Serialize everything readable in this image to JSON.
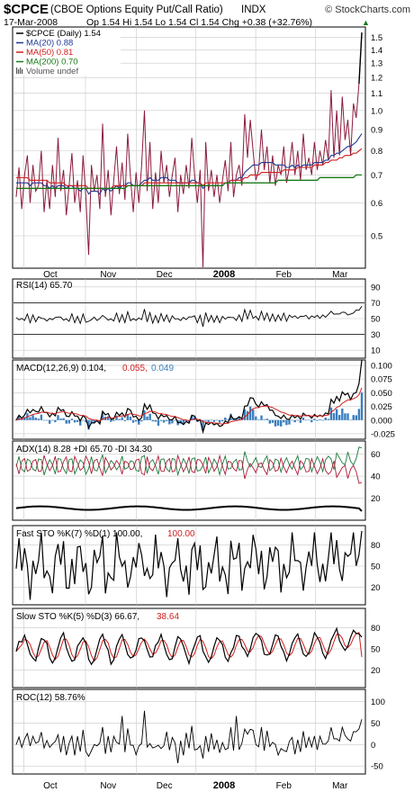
{
  "header": {
    "symbol": "$CPCE",
    "name": "(CBOE Options Equity Put/Call Ratio)",
    "exchange": "INDX",
    "watermark": "© StockCharts.com",
    "date": "17-Mar-2008",
    "quote": "Op 1.54  Hi 1.54  Lo 1.54  Cl 1.54  Chg +0.38 (+32.76%)",
    "quote_marker": "▲"
  },
  "colors": {
    "price": "#8b1a3b",
    "ma20": "#1f3a93",
    "ma50": "#d11f1f",
    "ma200": "#1a7a1a",
    "macd_line": "#000000",
    "signal": "#d11f1f",
    "histogram": "#3a7fbf",
    "plus_di": "#1a7a3a",
    "minus_di": "#b01a3a",
    "adx": "#000000",
    "grid": "#c8c8c8"
  },
  "x_axis": {
    "months": [
      "Oct",
      "Nov",
      "Dec",
      "2008",
      "Feb",
      "Mar"
    ]
  },
  "panels": {
    "price": {
      "legend": [
        {
          "label": "$CPCE (Daily) 1.54",
          "icon": "line",
          "color": "#000000"
        },
        {
          "label": "MA(20) 0.88",
          "icon": "line",
          "color": "#1f3a93"
        },
        {
          "label": "MA(50) 0.81",
          "icon": "line",
          "color": "#d11f1f"
        },
        {
          "label": "MA(200) 0.70",
          "icon": "line",
          "color": "#1a7a1a"
        },
        {
          "label": "Volume undef",
          "icon": "bars",
          "color": "#555555"
        }
      ],
      "ticks": [
        "1.5",
        "1.4",
        "1.3",
        "1.2",
        "1.1",
        "1.0",
        "0.9",
        "0.8",
        "0.7",
        "0.6",
        "0.5"
      ]
    },
    "rsi": {
      "label": "RSI(14) 65.70",
      "ticks": [
        "90",
        "70",
        "50",
        "30",
        "10"
      ]
    },
    "macd": {
      "label_main": "MACD(12,26,9) 0.104,",
      "label_signal": "0.055,",
      "label_hist": "0.049",
      "ticks": [
        "0.100",
        "0.075",
        "0.050",
        "0.025",
        "0.000",
        "-0.025"
      ]
    },
    "adx": {
      "label": "ADX(14) 8.28  +DI 65.70  -DI 34.30",
      "ticks": [
        "60",
        "40",
        "20"
      ]
    },
    "faststo": {
      "label_main": "Fast STO %K(7) %D(1) 100.00,",
      "label_d": "100.00",
      "ticks": [
        "80",
        "50",
        "20"
      ]
    },
    "slowsto": {
      "label_main": "Slow STO %K(5) %D(3) 66.67,",
      "label_d": "38.64",
      "ticks": [
        "80",
        "50",
        "20"
      ]
    },
    "roc": {
      "label": "ROC(12) 58.76%",
      "ticks": [
        "100",
        "50",
        "0",
        "-50"
      ]
    }
  },
  "chart_data": {
    "type": "line",
    "title": "$CPCE (CBOE Options Equity Put/Call Ratio) INDX",
    "ylim": [
      0.42,
      1.58
    ],
    "y_scale": "log",
    "x_labels": [
      "Oct",
      "Nov",
      "Dec",
      "2008",
      "Feb",
      "Mar"
    ],
    "series": [
      {
        "name": "$CPCE (Daily)",
        "values": [
          0.62,
          0.73,
          0.58,
          0.7,
          0.78,
          0.6,
          0.74,
          0.64,
          0.66,
          0.8,
          0.57,
          0.68,
          0.58,
          0.74,
          0.62,
          0.86,
          0.64,
          0.72,
          0.56,
          0.66,
          0.79,
          0.6,
          0.68,
          0.57,
          0.78,
          0.62,
          0.45,
          0.74,
          0.64,
          0.7,
          0.58,
          0.93,
          0.62,
          0.72,
          0.56,
          0.68,
          0.82,
          0.63,
          0.75,
          0.61,
          0.88,
          0.69,
          0.57,
          0.71,
          0.6,
          0.74,
          1.0,
          0.64,
          0.84,
          0.58,
          0.71,
          0.6,
          0.8,
          0.67,
          0.74,
          0.62,
          0.7,
          0.77,
          0.57,
          0.7,
          0.63,
          0.74,
          0.65,
          0.86,
          0.7,
          0.6,
          0.72,
          0.42,
          0.84,
          0.64,
          0.72,
          0.62,
          0.7,
          0.6,
          0.68,
          0.76,
          0.64,
          0.84,
          0.62,
          0.7,
          0.74,
          0.66,
          0.98,
          0.77,
          0.95,
          0.8,
          0.68,
          0.72,
          0.9,
          0.72,
          0.82,
          0.67,
          0.78,
          0.66,
          0.74,
          0.7,
          0.82,
          0.67,
          0.73,
          0.84,
          0.7,
          0.8,
          0.68,
          0.88,
          0.72,
          0.77,
          0.7,
          0.84,
          0.72,
          0.8,
          0.74,
          0.85,
          0.76,
          1.12,
          0.77,
          1.0,
          0.78,
          1.08,
          0.85,
          0.95,
          0.78,
          1.04,
          0.96,
          1.16,
          1.54
        ]
      },
      {
        "name": "MA(20)",
        "values": [
          0.67,
          0.67,
          0.67,
          0.67,
          0.67,
          0.66,
          0.67,
          0.67,
          0.67,
          0.67,
          0.66,
          0.66,
          0.65,
          0.66,
          0.65,
          0.66,
          0.66,
          0.66,
          0.65,
          0.66,
          0.66,
          0.65,
          0.65,
          0.64,
          0.65,
          0.65,
          0.63,
          0.64,
          0.64,
          0.64,
          0.63,
          0.65,
          0.64,
          0.65,
          0.64,
          0.65,
          0.66,
          0.65,
          0.66,
          0.66,
          0.67,
          0.67,
          0.66,
          0.66,
          0.66,
          0.67,
          0.68,
          0.68,
          0.69,
          0.68,
          0.68,
          0.68,
          0.69,
          0.69,
          0.69,
          0.68,
          0.68,
          0.68,
          0.67,
          0.67,
          0.67,
          0.67,
          0.67,
          0.68,
          0.68,
          0.67,
          0.67,
          0.65,
          0.66,
          0.66,
          0.66,
          0.66,
          0.66,
          0.66,
          0.66,
          0.67,
          0.67,
          0.68,
          0.68,
          0.68,
          0.69,
          0.69,
          0.71,
          0.72,
          0.73,
          0.74,
          0.74,
          0.74,
          0.75,
          0.75,
          0.75,
          0.75,
          0.75,
          0.74,
          0.74,
          0.74,
          0.74,
          0.73,
          0.73,
          0.74,
          0.73,
          0.74,
          0.73,
          0.74,
          0.74,
          0.74,
          0.74,
          0.75,
          0.75,
          0.75,
          0.75,
          0.76,
          0.76,
          0.78,
          0.78,
          0.79,
          0.79,
          0.8,
          0.81,
          0.82,
          0.82,
          0.83,
          0.84,
          0.86,
          0.88
        ]
      },
      {
        "name": "MA(50)",
        "values": [
          0.69,
          0.69,
          0.69,
          0.69,
          0.69,
          0.68,
          0.68,
          0.68,
          0.68,
          0.68,
          0.68,
          0.68,
          0.67,
          0.67,
          0.67,
          0.67,
          0.67,
          0.67,
          0.66,
          0.66,
          0.66,
          0.66,
          0.66,
          0.66,
          0.66,
          0.66,
          0.65,
          0.65,
          0.65,
          0.65,
          0.65,
          0.65,
          0.65,
          0.65,
          0.65,
          0.66,
          0.66,
          0.66,
          0.66,
          0.66,
          0.66,
          0.66,
          0.66,
          0.66,
          0.66,
          0.66,
          0.67,
          0.67,
          0.67,
          0.67,
          0.67,
          0.67,
          0.67,
          0.67,
          0.67,
          0.67,
          0.67,
          0.67,
          0.67,
          0.67,
          0.67,
          0.67,
          0.67,
          0.67,
          0.67,
          0.67,
          0.67,
          0.66,
          0.67,
          0.67,
          0.67,
          0.67,
          0.67,
          0.67,
          0.67,
          0.67,
          0.67,
          0.68,
          0.68,
          0.68,
          0.68,
          0.68,
          0.69,
          0.69,
          0.7,
          0.7,
          0.7,
          0.7,
          0.71,
          0.71,
          0.71,
          0.71,
          0.71,
          0.71,
          0.71,
          0.71,
          0.72,
          0.72,
          0.72,
          0.72,
          0.72,
          0.73,
          0.73,
          0.73,
          0.73,
          0.73,
          0.73,
          0.74,
          0.74,
          0.74,
          0.74,
          0.75,
          0.75,
          0.76,
          0.76,
          0.76,
          0.77,
          0.77,
          0.78,
          0.78,
          0.78,
          0.79,
          0.79,
          0.8,
          0.81
        ]
      },
      {
        "name": "MA(200)",
        "values": [
          0.65,
          0.65,
          0.65,
          0.65,
          0.65,
          0.65,
          0.65,
          0.65,
          0.65,
          0.65,
          0.65,
          0.65,
          0.65,
          0.65,
          0.65,
          0.65,
          0.65,
          0.65,
          0.65,
          0.65,
          0.65,
          0.65,
          0.65,
          0.65,
          0.65,
          0.65,
          0.65,
          0.65,
          0.65,
          0.65,
          0.65,
          0.65,
          0.65,
          0.65,
          0.65,
          0.65,
          0.65,
          0.65,
          0.65,
          0.65,
          0.66,
          0.66,
          0.66,
          0.66,
          0.66,
          0.66,
          0.66,
          0.66,
          0.66,
          0.66,
          0.66,
          0.66,
          0.66,
          0.66,
          0.66,
          0.66,
          0.66,
          0.66,
          0.66,
          0.66,
          0.66,
          0.66,
          0.66,
          0.66,
          0.66,
          0.66,
          0.66,
          0.66,
          0.66,
          0.66,
          0.66,
          0.66,
          0.66,
          0.66,
          0.66,
          0.67,
          0.67,
          0.67,
          0.67,
          0.67,
          0.67,
          0.67,
          0.67,
          0.67,
          0.67,
          0.67,
          0.67,
          0.67,
          0.67,
          0.67,
          0.67,
          0.67,
          0.67,
          0.67,
          0.68,
          0.68,
          0.68,
          0.68,
          0.68,
          0.68,
          0.68,
          0.68,
          0.68,
          0.68,
          0.68,
          0.68,
          0.68,
          0.68,
          0.68,
          0.69,
          0.69,
          0.69,
          0.69,
          0.69,
          0.69,
          0.69,
          0.69,
          0.69,
          0.69,
          0.69,
          0.69,
          0.69,
          0.7,
          0.7,
          0.7
        ]
      }
    ]
  }
}
